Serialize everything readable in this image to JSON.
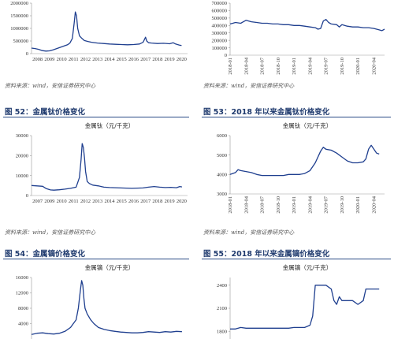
{
  "sources": {
    "source_text": "资料来源：wind，安信证券研究中心"
  },
  "figures": {
    "f52": "图 52：金属钛价格变化",
    "f53": "图 53：2018 年以来金属钛价格变化",
    "f54": "图 54：金属镝价格变化",
    "f55": "图 55：2018 年以来金属镝价格变化"
  },
  "colors": {
    "line": "#1f3f8f",
    "axis": "#999999",
    "accent": "#1f3a6e"
  },
  "chart_data": [
    {
      "id": "c1",
      "type": "line",
      "title": "",
      "ylim": [
        0,
        2000000
      ],
      "yticks": [
        0,
        500000,
        1000000,
        1500000,
        2000000
      ],
      "ytick_labels": [
        "0",
        "500000",
        "1000000",
        "1500000",
        "2000000"
      ],
      "xlim": [
        2008,
        2021
      ],
      "xtick_labels": [
        "2008",
        "2009",
        "2010",
        "2011",
        "2012",
        "2013",
        "2014",
        "2015",
        "2016",
        "2017",
        "2018",
        "2019",
        "2020"
      ],
      "series": [
        {
          "x": [
            2008,
            2008.3,
            2008.6,
            2008.9,
            2009.2,
            2009.5,
            2009.8,
            2010.1,
            2010.4,
            2010.7,
            2011.0,
            2011.2,
            2011.4,
            2011.55,
            2011.65,
            2011.75,
            2011.85,
            2012.0,
            2012.2,
            2012.4,
            2012.7,
            2013.0,
            2013.5,
            2014.0,
            2014.5,
            2015.0,
            2015.5,
            2016.0,
            2016.5,
            2017.0,
            2017.3,
            2017.5,
            2017.6,
            2017.75,
            2018.0,
            2018.5,
            2019.0,
            2019.5,
            2019.8,
            2020.0,
            2020.3,
            2020.5
          ],
          "y": [
            220000,
            200000,
            170000,
            120000,
            100000,
            110000,
            150000,
            200000,
            250000,
            300000,
            350000,
            420000,
            600000,
            1200000,
            1650000,
            1500000,
            1000000,
            700000,
            600000,
            520000,
            480000,
            450000,
            420000,
            400000,
            380000,
            370000,
            360000,
            350000,
            360000,
            380000,
            450000,
            650000,
            500000,
            430000,
            420000,
            400000,
            410000,
            390000,
            430000,
            380000,
            340000,
            320000
          ]
        }
      ]
    },
    {
      "id": "c2",
      "type": "line",
      "title": "",
      "ylim": [
        0,
        700000
      ],
      "yticks": [
        0,
        100000,
        200000,
        300000,
        400000,
        500000,
        600000,
        700000
      ],
      "ytick_labels": [
        "0",
        "100000",
        "200000",
        "300000",
        "400000",
        "500000",
        "600000",
        "700000"
      ],
      "xlim": [
        0,
        29
      ],
      "xticks": [
        0,
        3,
        6,
        9,
        12,
        15,
        18,
        21,
        24,
        27
      ],
      "xtick_labels": [
        "2018-01",
        "2018-04",
        "2018-07",
        "2018-10",
        "2019-01",
        "2019-04",
        "2019-07",
        "2019-10",
        "2020-01",
        "2020-04"
      ],
      "series": [
        {
          "x": [
            0,
            0.5,
            1,
            2,
            2.5,
            3,
            4,
            5,
            6,
            7,
            8,
            9,
            10,
            11,
            12,
            13,
            14,
            15,
            16,
            16.5,
            17,
            17.5,
            18,
            18.5,
            19,
            20,
            20.5,
            21,
            22,
            23,
            24,
            25,
            26,
            27,
            27.5,
            28,
            28.5,
            29
          ],
          "y": [
            420000,
            430000,
            440000,
            430000,
            450000,
            470000,
            450000,
            440000,
            430000,
            430000,
            420000,
            420000,
            410000,
            410000,
            400000,
            400000,
            390000,
            380000,
            370000,
            350000,
            360000,
            460000,
            480000,
            440000,
            420000,
            410000,
            380000,
            410000,
            390000,
            380000,
            380000,
            370000,
            370000,
            360000,
            350000,
            340000,
            330000,
            350000
          ]
        }
      ]
    },
    {
      "id": "c3",
      "type": "line",
      "title": "金属钛（元/千克）",
      "ylim": [
        0,
        30000
      ],
      "yticks": [
        0,
        10000,
        20000,
        30000
      ],
      "ytick_labels": [
        "0",
        "10000",
        "20000",
        "30000"
      ],
      "xlim": [
        2007,
        2021
      ],
      "xtick_labels": [
        "2007",
        "2009",
        "2010",
        "2011",
        "2012",
        "2013",
        "2014",
        "2015",
        "2016",
        "2017",
        "2018",
        "2019",
        "2020"
      ],
      "series": [
        {
          "x": [
            2007,
            2007.5,
            2008,
            2008.3,
            2008.7,
            2009.0,
            2009.5,
            2010.0,
            2010.5,
            2011.0,
            2011.3,
            2011.45,
            2011.55,
            2011.65,
            2011.75,
            2011.85,
            2012.0,
            2012.2,
            2012.5,
            2013.0,
            2013.5,
            2014.0,
            2014.5,
            2015.0,
            2015.5,
            2016.0,
            2016.5,
            2017.0,
            2017.5,
            2018.0,
            2018.5,
            2019.0,
            2019.5,
            2020.0,
            2020.3,
            2020.5
          ],
          "y": [
            5000,
            4800,
            4600,
            3500,
            2800,
            2700,
            2900,
            3200,
            3600,
            4200,
            9000,
            18000,
            26000,
            24000,
            19000,
            12000,
            7000,
            6000,
            5200,
            4800,
            4200,
            4000,
            3900,
            3800,
            3700,
            3600,
            3700,
            3800,
            4200,
            4500,
            4200,
            4000,
            4100,
            3900,
            4500,
            4300
          ]
        }
      ]
    },
    {
      "id": "c4",
      "type": "line",
      "title": "金属钛（元/千克）",
      "ylim": [
        3000,
        6000
      ],
      "yticks": [
        3000,
        4000,
        5000,
        6000
      ],
      "ytick_labels": [
        "3000",
        "4000",
        "5000",
        "6000"
      ],
      "xlim": [
        0,
        29
      ],
      "xticks": [
        0,
        3,
        6,
        9,
        12,
        15,
        18,
        21,
        24,
        27
      ],
      "xtick_labels": [
        "2018-01",
        "2018-04",
        "2018-07",
        "2018-10",
        "2019-01",
        "2019-04",
        "2019-07",
        "2019-10",
        "2020-01",
        "2020-04"
      ],
      "series": [
        {
          "x": [
            0,
            1,
            1.5,
            2,
            3,
            4,
            5,
            6,
            7,
            8,
            9,
            10,
            11,
            12,
            13,
            14,
            15,
            16,
            17,
            17.5,
            18,
            19,
            20,
            21,
            22,
            23,
            24,
            25,
            25.5,
            26,
            26.5,
            27,
            27.5,
            28
          ],
          "y": [
            4000,
            4100,
            4250,
            4200,
            4150,
            4100,
            4000,
            3950,
            3950,
            3950,
            3950,
            3950,
            4000,
            4000,
            4000,
            4050,
            4200,
            4600,
            5200,
            5400,
            5300,
            5250,
            5100,
            4900,
            4700,
            4600,
            4600,
            4650,
            4800,
            5300,
            5500,
            5300,
            5100,
            5050
          ]
        }
      ]
    },
    {
      "id": "c5",
      "type": "line",
      "title": "金属镝（元/千克）",
      "ylim": [
        0,
        16000
      ],
      "yticks": [
        4000,
        8000,
        12000,
        16000
      ],
      "ytick_labels": [
        "4000",
        "8000",
        "12000",
        "16000"
      ],
      "xlim": [
        2007,
        2021
      ],
      "xtick_labels": [],
      "series": [
        {
          "x": [
            2007,
            2007.5,
            2008,
            2008.5,
            2009,
            2009.5,
            2010,
            2010.5,
            2011.0,
            2011.2,
            2011.4,
            2011.5,
            2011.6,
            2011.7,
            2011.8,
            2012.0,
            2012.3,
            2012.6,
            2013.0,
            2013.5,
            2014.0,
            2014.5,
            2015.0,
            2015.5,
            2016.0,
            2016.5,
            2017.0,
            2017.5,
            2018.0,
            2018.5,
            2019.0,
            2019.5,
            2020.0,
            2020.5
          ],
          "y": [
            1200,
            1500,
            1600,
            1400,
            1300,
            1500,
            2000,
            3000,
            5000,
            8000,
            13000,
            15200,
            14000,
            10500,
            8000,
            6500,
            5000,
            4000,
            3000,
            2500,
            2200,
            2000,
            1800,
            1700,
            1600,
            1600,
            1700,
            1900,
            1800,
            1700,
            1900,
            1800,
            2000,
            1900
          ]
        }
      ]
    },
    {
      "id": "c6",
      "type": "line",
      "title": "金属镝（元/千克）",
      "ylim": [
        1700,
        2500
      ],
      "yticks": [
        1800,
        2100,
        2400
      ],
      "ytick_labels": [
        "1800",
        "2100",
        "2400"
      ],
      "xlim": [
        0,
        29
      ],
      "xtick_labels": [],
      "series": [
        {
          "x": [
            0,
            1,
            2,
            3,
            4,
            5,
            6,
            7,
            8,
            9,
            10,
            11,
            12,
            13,
            14,
            15,
            15.5,
            16,
            17,
            18,
            19,
            19.5,
            20,
            20.5,
            21,
            22,
            23,
            24,
            25,
            25.5,
            26,
            27,
            28
          ],
          "y": [
            1830,
            1830,
            1850,
            1840,
            1840,
            1840,
            1840,
            1840,
            1840,
            1840,
            1840,
            1840,
            1850,
            1850,
            1850,
            1880,
            2000,
            2400,
            2400,
            2400,
            2350,
            2200,
            2150,
            2250,
            2200,
            2200,
            2200,
            2150,
            2200,
            2350,
            2350,
            2350,
            2350
          ]
        }
      ]
    }
  ]
}
